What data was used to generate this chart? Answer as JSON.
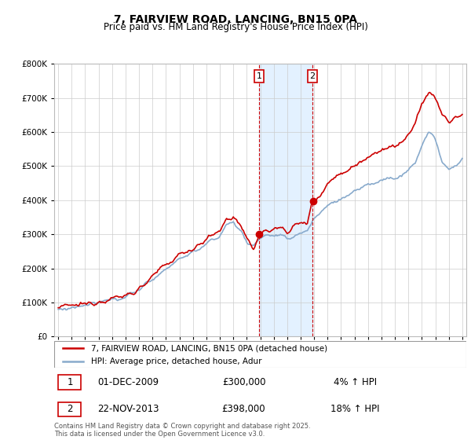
{
  "title": "7, FAIRVIEW ROAD, LANCING, BN15 0PA",
  "subtitle": "Price paid vs. HM Land Registry's House Price Index (HPI)",
  "legend_line1": "7, FAIRVIEW ROAD, LANCING, BN15 0PA (detached house)",
  "legend_line2": "HPI: Average price, detached house, Adur",
  "sale1_date": "01-DEC-2009",
  "sale1_price": "£300,000",
  "sale1_hpi": "4% ↑ HPI",
  "sale2_date": "22-NOV-2013",
  "sale2_price": "£398,000",
  "sale2_hpi": "18% ↑ HPI",
  "footer": "Contains HM Land Registry data © Crown copyright and database right 2025.\nThis data is licensed under the Open Government Licence v3.0.",
  "red_color": "#cc0000",
  "blue_color": "#88aacc",
  "shade_color": "#ddeeff",
  "marker_box_color": "#cc0000",
  "ylim_max": 800000,
  "ylim_min": 0,
  "sale1_year": 2009.92,
  "sale2_year": 2013.88,
  "sale1_value": 300000,
  "sale2_value": 398000
}
